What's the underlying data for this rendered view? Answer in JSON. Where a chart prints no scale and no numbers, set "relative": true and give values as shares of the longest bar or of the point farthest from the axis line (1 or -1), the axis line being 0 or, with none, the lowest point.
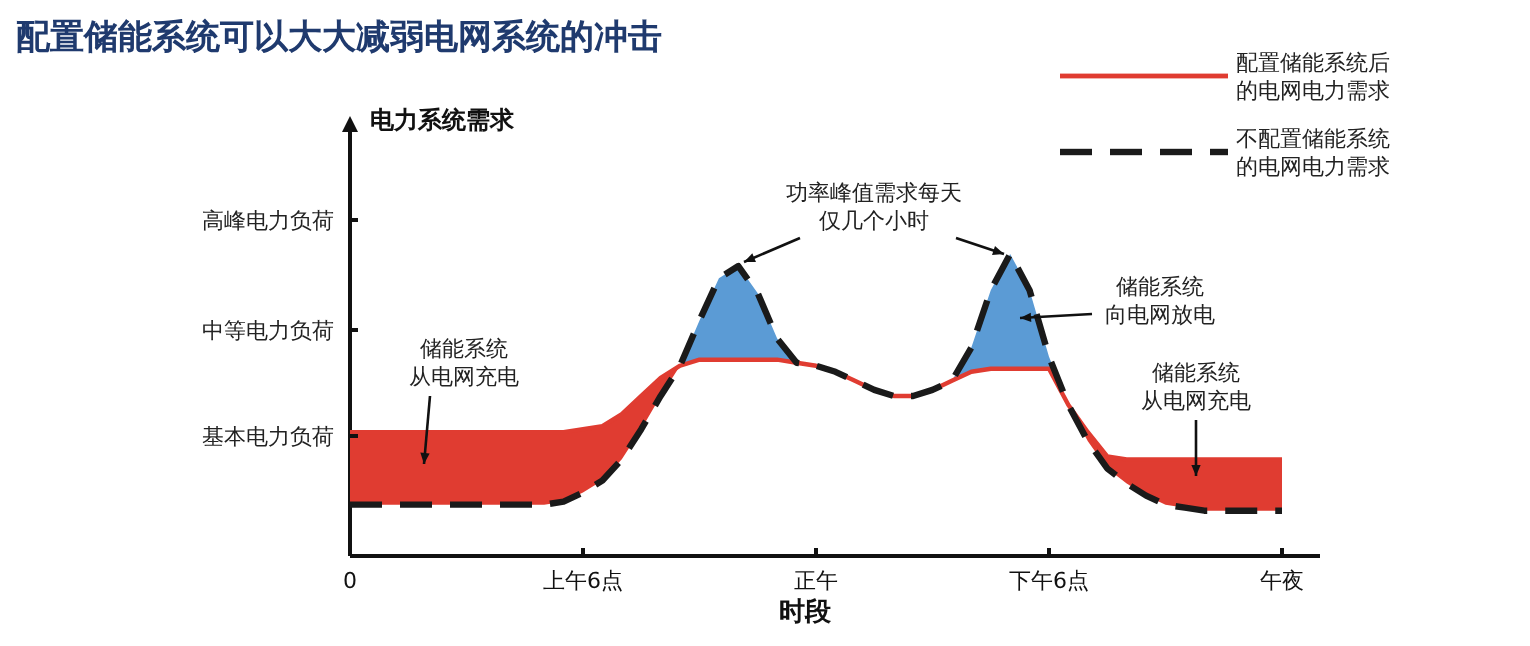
{
  "chart_data": {
    "type": "line",
    "relative": true,
    "title": "配置储能系统可以大大减弱电网系统的冲击",
    "ylabel": "电力系统需求",
    "xlabel": "时段",
    "categories": [
      "0",
      null,
      null,
      null,
      null,
      null,
      null,
      null,
      null,
      null,
      null,
      null,
      "上午6点",
      null,
      null,
      null,
      null,
      null,
      null,
      null,
      null,
      null,
      null,
      null,
      "正午",
      null,
      null,
      null,
      null,
      null,
      null,
      null,
      null,
      null,
      null,
      null,
      "下午6点",
      null,
      null,
      null,
      null,
      null,
      null,
      null,
      null,
      null,
      null,
      null,
      "午夜"
    ],
    "legend": "top right",
    "series": [
      {
        "name": "配置储能系统后的电网电力需求",
        "color": "#e03c31",
        "line_style": "solid",
        "values": [
          0.41,
          0.41,
          0.41,
          0.41,
          0.41,
          0.41,
          0.41,
          0.41,
          0.41,
          0.41,
          0.41,
          0.41,
          0.42,
          0.43,
          0.47,
          0.53,
          0.59,
          0.63,
          0.65,
          0.65,
          0.65,
          0.65,
          0.65,
          0.64,
          0.63,
          0.61,
          0.58,
          0.55,
          0.53,
          0.53,
          0.55,
          0.58,
          0.61,
          0.62,
          0.62,
          0.62,
          0.62,
          0.5,
          0.41,
          0.33,
          0.32,
          0.32,
          0.32,
          0.32,
          0.32,
          0.32,
          0.32,
          0.32,
          0.32
        ],
        "lower": [
          0.17,
          0.17,
          0.17,
          0.17,
          0.17,
          0.17,
          0.17,
          0.17,
          0.17,
          0.17,
          0.17,
          0.18,
          0.21,
          0.25,
          0.32,
          0.42,
          0.53,
          0.63,
          null,
          null,
          null,
          null,
          null,
          null,
          null,
          null,
          null,
          null,
          null,
          null,
          null,
          null,
          null,
          null,
          null,
          null,
          null,
          0.5,
          0.38,
          0.29,
          0.24,
          0.2,
          0.17,
          0.16,
          0.15,
          0.15,
          0.15,
          0.15,
          0.15
        ],
        "upper": [
          0.41,
          0.41,
          0.41,
          0.41,
          0.41,
          0.41,
          0.41,
          0.41,
          0.41,
          0.41,
          0.41,
          0.41,
          0.42,
          0.43,
          0.47,
          0.53,
          0.59,
          0.63,
          null,
          null,
          null,
          null,
          null,
          null,
          null,
          null,
          null,
          null,
          null,
          null,
          null,
          null,
          null,
          null,
          null,
          null,
          null,
          0.5,
          0.41,
          0.33,
          0.32,
          0.32,
          0.32,
          0.32,
          0.32,
          0.32,
          0.32,
          0.32,
          0.32
        ]
      },
      {
        "name": "不配置储能系统的电网电力需求",
        "color": "#1a1a1a",
        "line_style": "dashed",
        "values": [
          0.17,
          0.17,
          0.17,
          0.17,
          0.17,
          0.17,
          0.17,
          0.17,
          0.17,
          0.17,
          0.17,
          0.18,
          0.21,
          0.25,
          0.32,
          0.42,
          0.53,
          0.63,
          0.78,
          0.92,
          0.96,
          0.87,
          0.72,
          0.64,
          0.63,
          0.61,
          0.58,
          0.55,
          0.53,
          0.53,
          0.55,
          0.58,
          0.69,
          0.88,
          1.0,
          0.88,
          0.66,
          0.5,
          0.38,
          0.29,
          0.24,
          0.2,
          0.17,
          0.16,
          0.15,
          0.15,
          0.15,
          0.15,
          0.15
        ]
      },
      {
        "color": "#5b9bd5",
        "values": [
          null,
          null,
          null,
          null,
          null,
          null,
          null,
          null,
          null,
          null,
          null,
          null,
          null,
          null,
          null,
          null,
          null,
          null,
          null,
          null,
          null,
          null,
          null,
          null,
          null,
          null,
          null,
          null,
          null,
          null,
          null,
          null,
          null,
          null,
          null,
          null,
          null,
          null,
          null,
          null,
          null,
          null,
          null,
          null,
          null,
          null,
          null,
          null,
          null
        ],
        "lower": [
          null,
          null,
          null,
          null,
          null,
          null,
          null,
          null,
          null,
          null,
          null,
          null,
          null,
          null,
          null,
          null,
          null,
          0.63,
          0.65,
          0.65,
          0.65,
          0.65,
          0.65,
          0.64,
          null,
          null,
          null,
          null,
          null,
          null,
          null,
          0.58,
          0.61,
          0.62,
          0.62,
          0.62,
          0.62,
          0.5,
          null,
          null,
          null,
          null,
          null,
          null,
          null,
          null,
          null,
          null,
          null
        ],
        "upper": [
          null,
          null,
          null,
          null,
          null,
          null,
          null,
          null,
          null,
          null,
          null,
          null,
          null,
          null,
          null,
          null,
          null,
          0.63,
          0.78,
          0.92,
          0.96,
          0.87,
          0.72,
          0.64,
          null,
          null,
          null,
          null,
          null,
          null,
          null,
          0.58,
          0.69,
          0.88,
          1.0,
          0.88,
          0.66,
          0.5,
          null,
          null,
          null,
          null,
          null,
          null,
          null,
          null,
          null,
          null,
          null
        ]
      }
    ],
    "annotations": [
      "高峰电力负荷",
      "中等电力负荷",
      "基本电力负荷",
      "储能系统从电网充电",
      "功率峰值需求每天仅几个小时",
      "储能系统向电网放电",
      "储能系统从电网充电"
    ]
  }
}
